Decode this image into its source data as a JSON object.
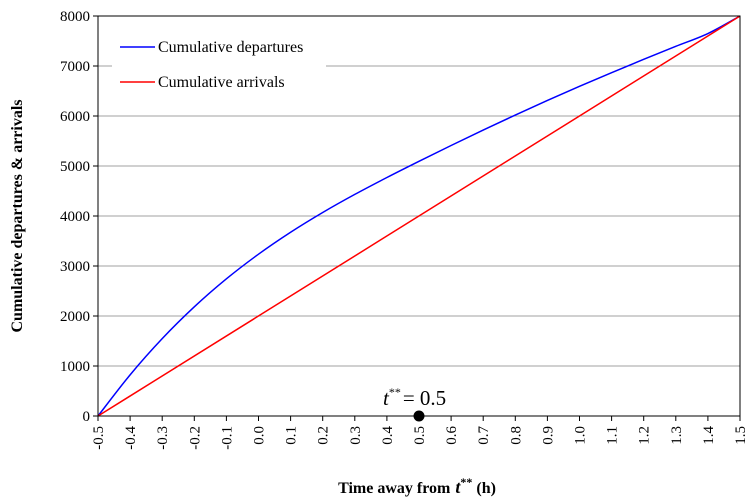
{
  "chart_data": {
    "type": "line",
    "title": "",
    "xlabel": "Time away from",
    "xlabel_var": "t",
    "xlabel_sup": "**",
    "xlabel_unit": "(h)",
    "ylabel": "Cumulative departures & arrivals",
    "xlim": [
      -0.5,
      1.5
    ],
    "ylim": [
      0,
      8000
    ],
    "x_ticks": [
      "-0.5",
      "-0.4",
      "-0.3",
      "-0.2",
      "-0.1",
      "0.0",
      "0.1",
      "0.2",
      "0.3",
      "0.4",
      "0.5",
      "0.6",
      "0.7",
      "0.8",
      "0.9",
      "1.0",
      "1.1",
      "1.2",
      "1.3",
      "1.4",
      "1.5"
    ],
    "y_ticks": [
      "0",
      "1000",
      "2000",
      "3000",
      "4000",
      "5000",
      "6000",
      "7000",
      "8000"
    ],
    "grid": "horizontal",
    "legend_position": "top-left",
    "series": [
      {
        "name": "Cumulative departures",
        "color": "#0000ff",
        "x": [
          -0.5,
          -0.4,
          -0.3,
          -0.2,
          -0.1,
          0.0,
          0.1,
          0.2,
          0.3,
          0.4,
          0.5,
          0.6,
          0.7,
          0.8,
          0.9,
          1.0,
          1.1,
          1.2,
          1.3,
          1.4,
          1.5
        ],
        "y": [
          0,
          823,
          1547,
          2183,
          2743,
          3236,
          3675,
          4070,
          4432,
          4770,
          5094,
          5410,
          5719,
          6019,
          6311,
          6593,
          6867,
          7133,
          7393,
          7649,
          8000
        ]
      },
      {
        "name": "Cumulative arrivals",
        "color": "#ff0000",
        "x": [
          -0.5,
          1.5
        ],
        "y": [
          0,
          8000
        ]
      }
    ],
    "annotations": [
      {
        "var": "t",
        "sup": "**",
        "text": "= 0.5",
        "point_x": 0.5,
        "point_y": 0
      }
    ]
  }
}
